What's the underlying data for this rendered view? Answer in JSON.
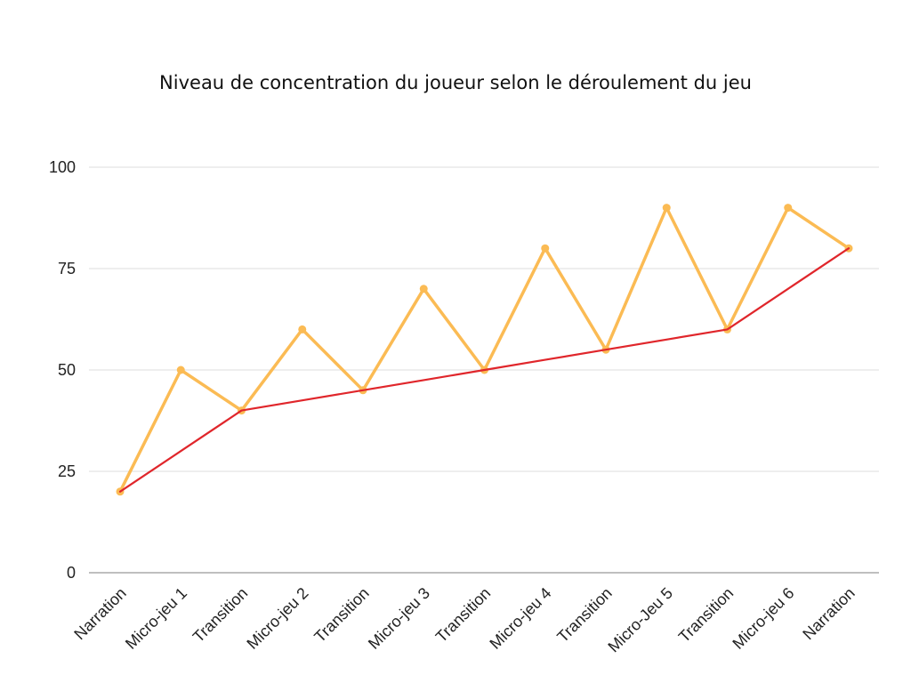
{
  "chart_data": {
    "type": "line",
    "title": "Niveau de concentration du joueur selon le déroulement du jeu",
    "xlabel": "",
    "ylabel": "",
    "categories": [
      "Narration",
      "Micro-jeu 1",
      "Transition",
      "Micro-jeu 2",
      "Transition",
      "Micro-jeu 3",
      "Transition",
      "Micro-jeu 4",
      "Transition",
      "Micro-Jeu 5",
      "Transition",
      "Micro-jeu 6",
      "Narration"
    ],
    "ylim": [
      0,
      100
    ],
    "yticks": [
      "0",
      "25",
      "50",
      "75",
      "100"
    ],
    "grid": true,
    "legend": "none",
    "series": [
      {
        "color": "#FBBB54",
        "markers": true,
        "values": [
          20,
          50,
          40,
          60,
          45,
          70,
          50,
          80,
          55,
          90,
          60,
          90,
          80
        ]
      },
      {
        "color": "#E0262B",
        "markers": false,
        "values": [
          20,
          30,
          40,
          42.5,
          45,
          47.5,
          50,
          52.5,
          55,
          57.5,
          60,
          70,
          80
        ]
      }
    ]
  }
}
